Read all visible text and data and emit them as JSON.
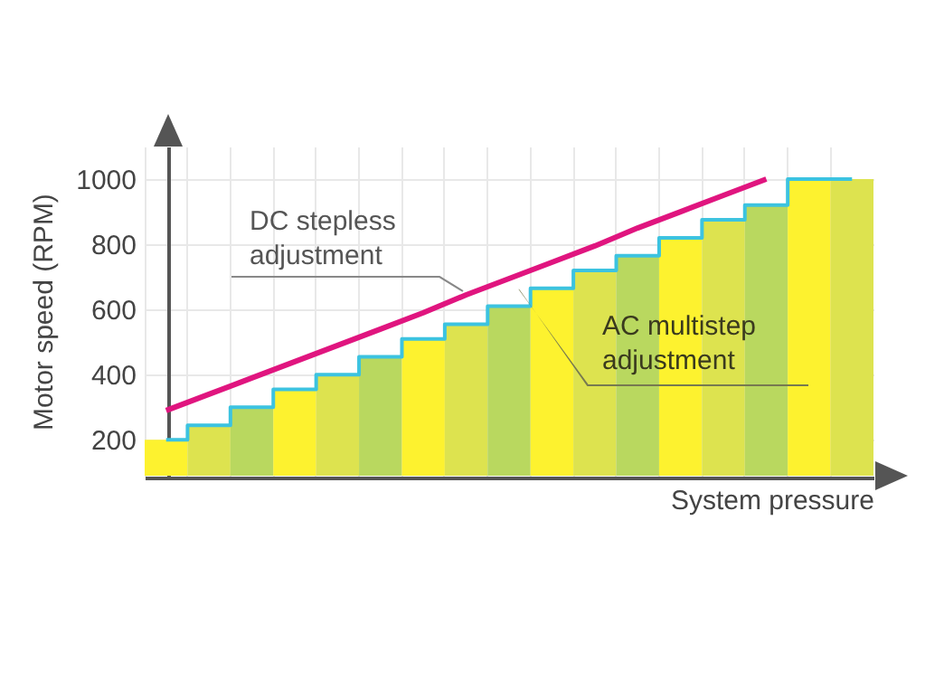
{
  "chart_data": {
    "type": "bar",
    "categories": [
      null,
      null,
      null,
      null,
      null,
      null,
      null,
      null,
      null,
      null,
      null,
      null,
      null,
      null,
      null,
      null,
      null
    ],
    "xlabel": "System pressure",
    "ylabel": "Motor speed (RPM)",
    "ylim": [
      90,
      1100
    ],
    "yticks": [
      200,
      400,
      600,
      800,
      1000
    ],
    "grid": true,
    "series": [
      {
        "name": "AC multistep adjustment",
        "colors": [
          "#fdf22f",
          "#dde34f",
          "#b9d85f",
          "#fdf22f",
          "#dde34f",
          "#b9d85f",
          "#fdf22f",
          "#dde34f",
          "#b9d85f",
          "#fdf22f",
          "#dde34f",
          "#b9d85f",
          "#fdf22f",
          "#dde34f",
          "#b9d85f",
          "#fdf22f",
          "#dde34f"
        ],
        "values": [
          200,
          245,
          300,
          355,
          400,
          455,
          510,
          555,
          610,
          665,
          720,
          765,
          820,
          875,
          920,
          1000,
          1000
        ]
      },
      {
        "type": "step",
        "color": "#3cc3e0",
        "values": [
          200,
          245,
          300,
          355,
          400,
          455,
          510,
          555,
          610,
          665,
          720,
          765,
          820,
          875,
          920,
          1000,
          1000
        ]
      },
      {
        "type": "line",
        "name": "DC stepless adjustment",
        "color": "#e0157f",
        "values": [
          290,
          340,
          390,
          440,
          490,
          540,
          590,
          645,
          695,
          745,
          795,
          850,
          900,
          950,
          1000,
          null,
          null
        ]
      }
    ]
  }
}
